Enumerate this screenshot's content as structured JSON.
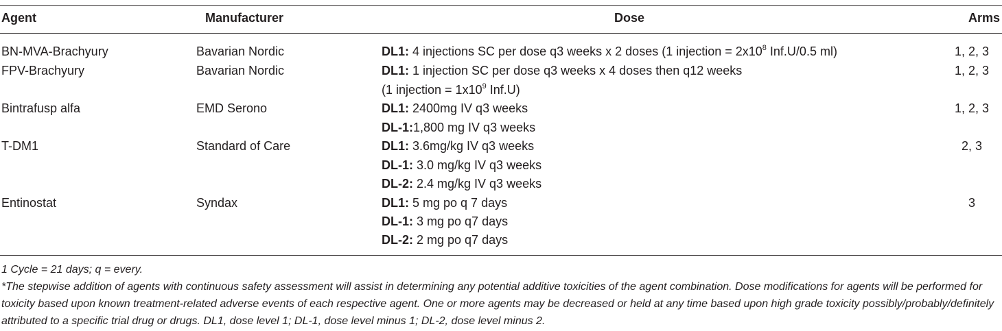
{
  "table": {
    "headers": {
      "agent": "Agent",
      "manufacturer": "Manufacturer",
      "dose": "Dose",
      "arms": "Arms"
    },
    "rows": [
      {
        "agent": "BN-MVA-Brachyury",
        "manufacturer": "Bavarian Nordic",
        "arms": "1, 2, 3",
        "dose_lines": [
          {
            "level": "DL1:",
            "text_before": " 4 injections SC per dose q3 weeks x 2 doses (1 injection = 2x10",
            "sup": "8",
            "text_after": " Inf.U/0.5 ml)"
          }
        ]
      },
      {
        "agent": "FPV-Brachyury",
        "manufacturer": "Bavarian Nordic",
        "arms": "1, 2, 3",
        "dose_lines": [
          {
            "level": "DL1:",
            "text_before": " 1 injection SC per dose q3 weeks x 4 doses then q12 weeks",
            "sup": "",
            "text_after": ""
          },
          {
            "level": "",
            "text_before": "(1 injection = 1x10",
            "sup": "9",
            "text_after": " Inf.U)"
          }
        ]
      },
      {
        "agent": "Bintrafusp alfa",
        "manufacturer": "EMD Serono",
        "arms": "1, 2, 3",
        "dose_lines": [
          {
            "level": "DL1:",
            "text_before": " 2400mg IV q3 weeks",
            "sup": "",
            "text_after": ""
          },
          {
            "level": "DL-1:",
            "text_before": "1,800 mg IV q3 weeks",
            "sup": "",
            "text_after": ""
          }
        ]
      },
      {
        "agent": "T-DM1",
        "manufacturer": "Standard of Care",
        "arms": "2, 3",
        "dose_lines": [
          {
            "level": "DL1:",
            "text_before": " 3.6mg/kg IV q3 weeks",
            "sup": "",
            "text_after": ""
          },
          {
            "level": "DL-1:",
            "text_before": " 3.0 mg/kg IV q3 weeks",
            "sup": "",
            "text_after": ""
          },
          {
            "level": "DL-2:",
            "text_before": " 2.4 mg/kg IV q3 weeks",
            "sup": "",
            "text_after": ""
          }
        ]
      },
      {
        "agent": "Entinostat",
        "manufacturer": "Syndax",
        "arms": "3",
        "dose_lines": [
          {
            "level": "DL1:",
            "text_before": " 5 mg po q 7 days",
            "sup": "",
            "text_after": ""
          },
          {
            "level": "DL-1:",
            "text_before": " 3 mg po q7 days",
            "sup": "",
            "text_after": ""
          },
          {
            "level": "DL-2:",
            "text_before": " 2 mg po q7 days",
            "sup": "",
            "text_after": ""
          }
        ]
      }
    ]
  },
  "footnotes": {
    "cycle": "1 Cycle = 21 days; q = every.",
    "stepwise": "*The stepwise addition of agents with continuous safety assessment will assist in determining any potential additive toxicities of the agent combination. Dose modifications for agents will be performed for toxicity based upon known treatment-related adverse events of each respective agent. One or more agents may be decreased or held at any time based upon high grade toxicity possibly/probably/definitely attributed to a specific trial drug or drugs. DL1, dose level 1; DL-1, dose level minus 1; DL-2, dose level minus 2."
  }
}
